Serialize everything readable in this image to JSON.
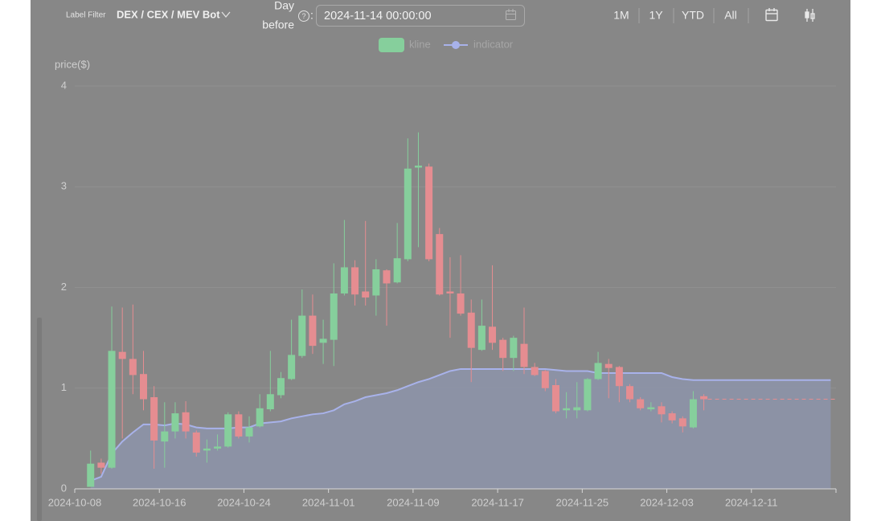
{
  "toolbar": {
    "label_filter": "Label Filter",
    "filter_value": "DEX / CEX / MEV Bot",
    "day_before": [
      "Day",
      "before"
    ],
    "help_icon": "?",
    "colon": ":",
    "date": "2024-11-14 00:00:00",
    "ranges": [
      "1M",
      "1Y",
      "YTD",
      "All"
    ]
  },
  "chart_data": {
    "type": "candlestick",
    "y_label": "price($)",
    "x": [
      "2024-10-09",
      "2024-10-10",
      "2024-10-11",
      "2024-10-12",
      "2024-10-13",
      "2024-10-14",
      "2024-10-15",
      "2024-10-16",
      "2024-10-17",
      "2024-10-18",
      "2024-10-19",
      "2024-10-20",
      "2024-10-21",
      "2024-10-22",
      "2024-10-23",
      "2024-10-24",
      "2024-10-25",
      "2024-10-26",
      "2024-10-27",
      "2024-10-28",
      "2024-10-29",
      "2024-10-30",
      "2024-10-31",
      "2024-11-01",
      "2024-11-02",
      "2024-11-03",
      "2024-11-04",
      "2024-11-05",
      "2024-11-06",
      "2024-11-07",
      "2024-11-08",
      "2024-11-09",
      "2024-11-10",
      "2024-11-11",
      "2024-11-12",
      "2024-11-13",
      "2024-11-14",
      "2024-11-15",
      "2024-11-16",
      "2024-11-17",
      "2024-11-18",
      "2024-11-19",
      "2024-11-20",
      "2024-11-21",
      "2024-11-22",
      "2024-11-23",
      "2024-11-24",
      "2024-11-25",
      "2024-11-26",
      "2024-11-27",
      "2024-11-28",
      "2024-11-29",
      "2024-11-30",
      "2024-12-01",
      "2024-12-02",
      "2024-12-03",
      "2024-12-04",
      "2024-12-05",
      "2024-12-06",
      "2024-12-07",
      "2024-12-08",
      "2024-12-09",
      "2024-12-10",
      "2024-12-11",
      "2024-12-12",
      "2024-12-13",
      "2024-12-14",
      "2024-12-15",
      "2024-12-16",
      "2024-12-17",
      "2024-12-18"
    ],
    "series": [
      {
        "name": "kline",
        "up_color": "#86cf9c",
        "down_color": "#e58d91",
        "open": [
          0.02,
          0.26,
          0.21,
          1.36,
          1.29,
          1.14,
          0.91,
          0.47,
          0.57,
          0.76,
          0.56,
          0.38,
          0.4,
          0.42,
          0.74,
          0.52,
          0.62,
          0.79,
          0.93,
          1.09,
          1.32,
          1.72,
          1.45,
          1.48,
          1.94,
          2.2,
          1.96,
          1.92,
          2.17,
          2.05,
          2.28,
          3.19,
          3.2,
          2.53,
          1.96,
          1.94,
          1.75,
          1.38,
          1.61,
          1.48,
          1.3,
          1.44,
          1.21,
          1.17,
          1.03,
          0.78,
          0.78,
          0.78,
          1.09,
          1.24,
          1.21,
          1.02,
          0.89,
          0.79,
          0.82,
          0.75,
          0.7,
          0.61,
          0.92,
          null,
          null,
          null,
          null,
          null,
          null,
          null,
          null,
          null,
          null,
          null,
          null
        ],
        "high": [
          0.38,
          0.3,
          1.81,
          1.8,
          1.83,
          1.37,
          1.02,
          0.86,
          0.86,
          0.87,
          0.58,
          0.49,
          0.54,
          0.76,
          0.77,
          0.72,
          0.94,
          1.37,
          1.16,
          1.68,
          1.98,
          1.93,
          1.68,
          2.24,
          2.67,
          2.27,
          2.66,
          2.28,
          2.18,
          2.64,
          3.48,
          3.54,
          3.23,
          2.59,
          2.3,
          2.32,
          1.88,
          1.88,
          2.22,
          1.5,
          1.52,
          1.8,
          1.25,
          1.18,
          1.09,
          0.96,
          1.06,
          1.1,
          1.36,
          1.29,
          1.22,
          1.04,
          0.91,
          0.86,
          0.86,
          0.77,
          0.72,
          0.97,
          0.94,
          null,
          null,
          null,
          null,
          null,
          null,
          null,
          null,
          null,
          null,
          null,
          null
        ],
        "low": [
          0.02,
          0.15,
          0.2,
          0.5,
          0.94,
          0.78,
          0.2,
          0.21,
          0.5,
          0.5,
          0.32,
          0.26,
          0.38,
          0.41,
          0.5,
          0.46,
          0.61,
          0.77,
          0.9,
          1.08,
          1.3,
          1.34,
          1.24,
          1.22,
          1.92,
          1.82,
          1.82,
          1.72,
          1.62,
          2.04,
          2.26,
          2.4,
          2.26,
          1.92,
          1.5,
          1.72,
          1.06,
          1.37,
          1.38,
          1.17,
          1.17,
          1.14,
          1.12,
          0.97,
          0.75,
          0.7,
          0.7,
          0.77,
          1.08,
          0.9,
          0.86,
          0.86,
          0.78,
          0.77,
          0.66,
          0.65,
          0.56,
          0.6,
          0.78,
          null,
          null,
          null,
          null,
          null,
          null,
          null,
          null,
          null,
          null,
          null,
          null
        ],
        "close": [
          0.25,
          0.21,
          1.37,
          1.29,
          1.13,
          0.89,
          0.48,
          0.57,
          0.75,
          0.57,
          0.36,
          0.4,
          0.42,
          0.74,
          0.52,
          0.61,
          0.8,
          0.94,
          1.1,
          1.33,
          1.72,
          1.42,
          1.49,
          1.94,
          2.2,
          1.93,
          1.9,
          2.18,
          2.04,
          2.29,
          3.18,
          3.21,
          2.28,
          1.93,
          1.94,
          1.74,
          1.4,
          1.62,
          1.45,
          1.3,
          1.5,
          1.21,
          1.13,
          1.0,
          0.77,
          0.8,
          0.81,
          1.09,
          1.25,
          1.2,
          1.02,
          0.89,
          0.8,
          0.81,
          0.74,
          0.68,
          0.62,
          0.89,
          0.89,
          null,
          null,
          null,
          null,
          null,
          null,
          null,
          null,
          null,
          null,
          null,
          null
        ]
      },
      {
        "name": "indicator",
        "color": "#a8b2ea",
        "area_color": "#8d94a8",
        "values": [
          0.08,
          0.12,
          0.35,
          0.47,
          0.56,
          0.64,
          0.64,
          0.63,
          0.65,
          0.64,
          0.61,
          0.6,
          0.6,
          0.6,
          0.61,
          0.61,
          0.65,
          0.66,
          0.67,
          0.7,
          0.72,
          0.74,
          0.75,
          0.78,
          0.84,
          0.87,
          0.91,
          0.93,
          0.95,
          0.98,
          1.02,
          1.06,
          1.09,
          1.13,
          1.17,
          1.19,
          1.19,
          1.19,
          1.19,
          1.19,
          1.19,
          1.19,
          1.19,
          1.19,
          1.18,
          1.17,
          1.17,
          1.17,
          1.15,
          1.15,
          1.15,
          1.15,
          1.15,
          1.15,
          1.15,
          1.11,
          1.09,
          1.08,
          1.08,
          1.08,
          1.08,
          1.08,
          1.08,
          1.08,
          1.08,
          1.08,
          1.08,
          1.08,
          1.08,
          1.08,
          1.08
        ]
      }
    ],
    "xlim": [
      "2024-10-08",
      "2024-12-19"
    ],
    "xticks": [
      "2024-10-08",
      "2024-10-16",
      "2024-10-24",
      "2024-11-01",
      "2024-11-09",
      "2024-11-17",
      "2024-11-25",
      "2024-12-03",
      "2024-12-11"
    ],
    "ylim": [
      0,
      4
    ],
    "yticks": [
      0,
      1,
      2,
      3,
      4
    ],
    "grid": true,
    "last_price_line": true
  }
}
